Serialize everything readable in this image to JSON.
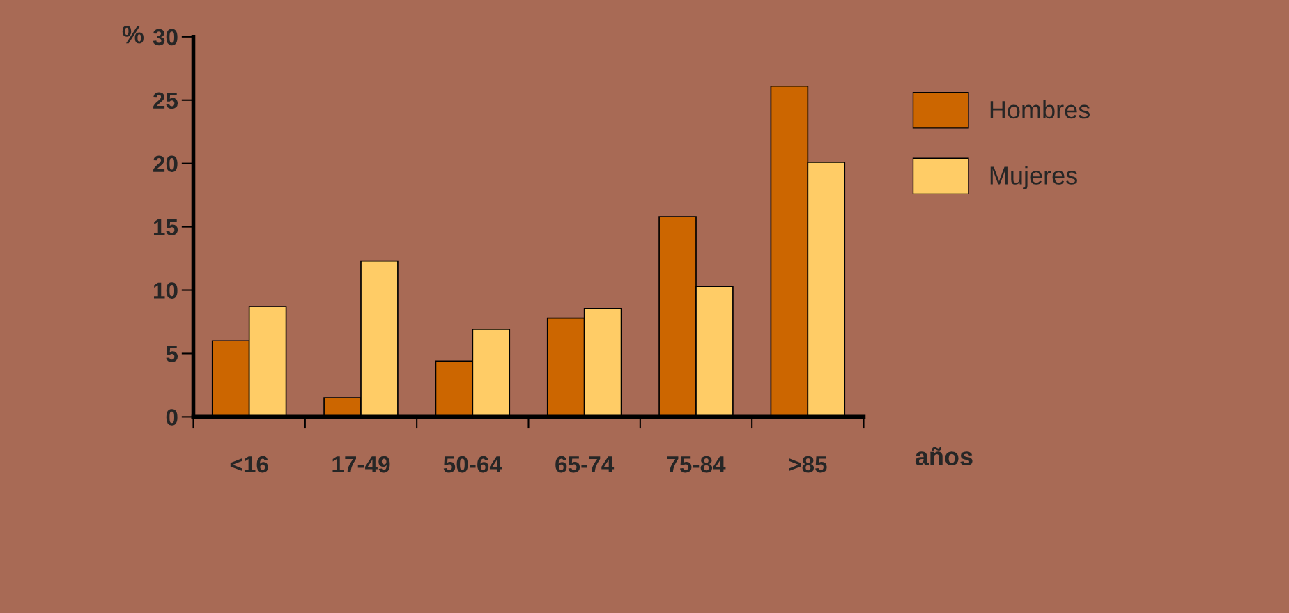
{
  "chart_data": {
    "type": "bar",
    "ylabel": "%",
    "xlabel": "años",
    "categories": [
      "<16",
      "17-49",
      "50-64",
      "65-74",
      "75-84",
      ">85"
    ],
    "series": [
      {
        "name": "Hombres",
        "color": "#cc6600",
        "values": [
          6.0,
          1.5,
          4.4,
          7.8,
          15.8,
          26.1
        ]
      },
      {
        "name": "Mujeres",
        "color": "#ffcc66",
        "values": [
          8.7,
          12.3,
          6.9,
          8.55,
          10.3,
          20.1
        ]
      }
    ],
    "ylim": [
      0,
      30
    ],
    "yticks": [
      0,
      5,
      10,
      15,
      20,
      25,
      30
    ],
    "grid": false,
    "legend": "right"
  }
}
